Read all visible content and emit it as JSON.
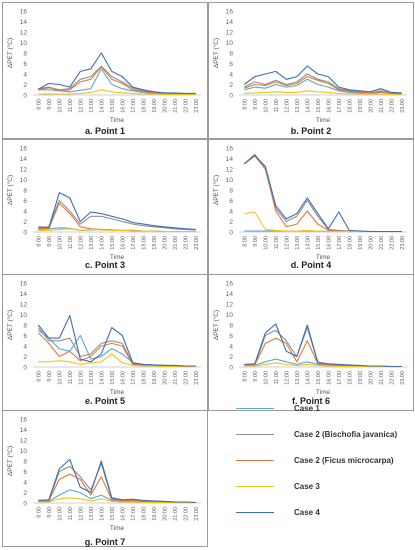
{
  "chart_data": [
    {
      "type": "line",
      "caption": "a. Point 1",
      "ylabel": "ΔPET (°C)",
      "xlabel": "Time",
      "ylim": [
        0,
        16
      ],
      "yticks": [
        0,
        2,
        4,
        6,
        8,
        10,
        12,
        14,
        16
      ],
      "x": [
        "8:00",
        "9:00",
        "10:00",
        "11:00",
        "12:00",
        "13:00",
        "14:00",
        "15:00",
        "16:00",
        "17:00",
        "18:00",
        "19:00",
        "20:00",
        "21:00",
        "22:00",
        "23:00"
      ],
      "series": [
        {
          "name": "Case 1",
          "color": "#5aa7d6",
          "values": [
            1.0,
            1.0,
            0.8,
            0.6,
            0.9,
            1.2,
            5.0,
            2.0,
            1.2,
            0.8,
            0.5,
            0.3,
            0.2,
            0.2,
            0.1,
            0.1
          ]
        },
        {
          "name": "Case 2 (Bischofia javanica)",
          "color": "#8f8f8f",
          "values": [
            1.2,
            1.5,
            1.0,
            1.2,
            3.0,
            3.5,
            5.5,
            3.5,
            2.5,
            1.3,
            0.8,
            0.5,
            0.3,
            0.3,
            0.2,
            0.2
          ]
        },
        {
          "name": "Case 2 (Ficus microcarpa)",
          "color": "#e07b39",
          "values": [
            1.0,
            1.4,
            0.9,
            1.0,
            2.5,
            3.0,
            5.4,
            3.0,
            2.2,
            1.0,
            0.6,
            0.4,
            0.3,
            0.2,
            0.2,
            0.2
          ]
        },
        {
          "name": "Case 3",
          "color": "#f2c31b",
          "values": [
            0.2,
            0.2,
            0.2,
            0.2,
            0.3,
            0.5,
            1.0,
            0.6,
            0.4,
            0.3,
            0.2,
            0.2,
            0.1,
            0.1,
            0.1,
            0.1
          ]
        },
        {
          "name": "Case 4",
          "color": "#3d6db3",
          "values": [
            1.1,
            2.2,
            2.0,
            1.5,
            4.5,
            5.0,
            8.0,
            4.5,
            3.5,
            1.5,
            1.0,
            0.6,
            0.4,
            0.4,
            0.3,
            0.3
          ]
        }
      ]
    },
    {
      "type": "line",
      "caption": "b. Point 2",
      "ylabel": "ΔPET (°C)",
      "xlabel": "Time",
      "ylim": [
        0,
        16
      ],
      "yticks": [
        0,
        2,
        4,
        6,
        8,
        10,
        12,
        14,
        16
      ],
      "x": [
        "8:00",
        "9:00",
        "10:00",
        "11:00",
        "12:00",
        "13:00",
        "14:00",
        "15:00",
        "16:00",
        "17:00",
        "18:00",
        "19:00",
        "20:00",
        "21:00",
        "22:00",
        "23:00"
      ],
      "series": [
        {
          "name": "Case 1",
          "color": "#5aa7d6",
          "values": [
            1.0,
            1.5,
            1.3,
            2.0,
            1.5,
            1.8,
            3.0,
            2.0,
            1.5,
            0.8,
            0.5,
            0.4,
            0.3,
            0.5,
            0.3,
            0.2
          ]
        },
        {
          "name": "Case 2 (Bischofia javanica)",
          "color": "#8f8f8f",
          "values": [
            1.5,
            2.5,
            2.0,
            2.8,
            2.0,
            2.5,
            4.0,
            3.0,
            2.5,
            1.2,
            0.8,
            0.6,
            0.4,
            0.8,
            0.4,
            0.3
          ]
        },
        {
          "name": "Case 2 (Ficus microcarpa)",
          "color": "#e07b39",
          "values": [
            1.3,
            2.0,
            1.8,
            2.5,
            1.8,
            2.2,
            3.5,
            2.8,
            2.2,
            1.0,
            0.7,
            0.5,
            0.4,
            0.6,
            0.3,
            0.3
          ]
        },
        {
          "name": "Case 3",
          "color": "#f2c31b",
          "values": [
            0.3,
            0.4,
            0.5,
            0.6,
            0.5,
            0.5,
            0.8,
            0.6,
            0.5,
            0.3,
            0.2,
            0.2,
            0.2,
            0.2,
            0.1,
            0.1
          ]
        },
        {
          "name": "Case 4",
          "color": "#3d6db3",
          "values": [
            2.0,
            3.5,
            4.0,
            4.5,
            3.0,
            3.5,
            5.5,
            4.0,
            3.5,
            1.5,
            1.0,
            0.8,
            0.6,
            1.2,
            0.5,
            0.4
          ]
        }
      ]
    },
    {
      "type": "line",
      "caption": "c. Point 3",
      "ylabel": "ΔPET (°C)",
      "xlabel": "Time",
      "ylim": [
        0,
        16
      ],
      "yticks": [
        0,
        2,
        4,
        6,
        8,
        10,
        12,
        14,
        16
      ],
      "x": [
        "8:00",
        "9:00",
        "10:00",
        "11:00",
        "12:00",
        "13:00",
        "14:00",
        "15:00",
        "16:00",
        "17:00",
        "18:00",
        "19:00",
        "20:00",
        "21:00",
        "22:00",
        "23:00"
      ],
      "series": [
        {
          "name": "Case 1",
          "color": "#5aa7d6",
          "values": [
            0.5,
            0.6,
            0.8,
            0.7,
            0.3,
            0.4,
            0.5,
            0.4,
            0.3,
            0.3,
            0.2,
            0.2,
            0.1,
            0.1,
            0.1,
            0.1
          ]
        },
        {
          "name": "Case 2 (Bischofia javanica)",
          "color": "#8f8f8f",
          "values": [
            0.8,
            1.0,
            6.0,
            4.0,
            1.5,
            3.0,
            3.0,
            2.5,
            2.0,
            1.5,
            1.2,
            1.0,
            0.8,
            0.6,
            0.5,
            0.4
          ]
        },
        {
          "name": "Case 2 (Ficus microcarpa)",
          "color": "#e07b39",
          "values": [
            0.7,
            0.6,
            5.5,
            3.5,
            1.0,
            0.6,
            0.5,
            0.4,
            0.3,
            0.3,
            0.2,
            0.2,
            0.1,
            0.1,
            0.1,
            0.1
          ]
        },
        {
          "name": "Case 3",
          "color": "#f2c31b",
          "values": [
            0.3,
            0.3,
            0.5,
            0.6,
            0.3,
            0.5,
            0.4,
            0.3,
            0.3,
            0.2,
            0.2,
            0.2,
            0.1,
            0.1,
            0.1,
            0.1
          ]
        },
        {
          "name": "Case 4",
          "color": "#3d6db3",
          "values": [
            1.0,
            0.8,
            7.5,
            6.5,
            2.0,
            3.8,
            3.5,
            3.0,
            2.5,
            1.8,
            1.5,
            1.2,
            1.0,
            0.8,
            0.6,
            0.5
          ]
        }
      ]
    },
    {
      "type": "line",
      "caption": "d. Point 4",
      "ylabel": "ΔPET (°C)",
      "xlabel": "Time",
      "ylim": [
        0,
        16
      ],
      "yticks": [
        0,
        2,
        4,
        6,
        8,
        10,
        12,
        14,
        16
      ],
      "x": [
        "8:00",
        "9:00",
        "10:00",
        "11:00",
        "12:00",
        "13:00",
        "14:00",
        "15:00",
        "16:00",
        "17:00",
        "18:00",
        "19:00",
        "20:00",
        "21:00",
        "22:00",
        "23:00"
      ],
      "series": [
        {
          "name": "Case 1",
          "color": "#5aa7d6",
          "values": [
            0.2,
            0.2,
            0.2,
            0.2,
            0.2,
            0.2,
            0.2,
            0.2,
            0.1,
            0.1,
            0.1,
            0.1,
            0.1,
            0.1,
            0.1,
            0.1
          ]
        },
        {
          "name": "Case 2 (Bischofia javanica)",
          "color": "#8f8f8f",
          "values": [
            13.0,
            14.5,
            12.0,
            4.5,
            2.0,
            3.0,
            6.0,
            3.0,
            0.5,
            0.3,
            0.2,
            0.2,
            0.1,
            0.1,
            0.1,
            0.1
          ]
        },
        {
          "name": "Case 2 (Ficus microcarpa)",
          "color": "#e07b39",
          "values": [
            13.0,
            14.8,
            12.0,
            4.0,
            1.0,
            1.5,
            4.0,
            1.5,
            0.3,
            0.2,
            0.2,
            0.1,
            0.1,
            0.1,
            0.1,
            0.1
          ]
        },
        {
          "name": "Case 3",
          "color": "#f2c31b",
          "values": [
            3.5,
            3.8,
            0.5,
            0.3,
            0.2,
            0.2,
            0.3,
            0.2,
            0.1,
            0.1,
            0.1,
            0.1,
            0.1,
            0.1,
            0.1,
            0.1
          ]
        },
        {
          "name": "Case 4",
          "color": "#3d6db3",
          "values": [
            13.0,
            14.6,
            12.5,
            5.0,
            2.5,
            3.5,
            6.5,
            3.5,
            0.6,
            3.8,
            0.3,
            0.2,
            0.1,
            0.1,
            0.1,
            0.1
          ]
        }
      ]
    },
    {
      "type": "line",
      "caption": "e. Point 5",
      "ylabel": "ΔPET (°C)",
      "xlabel": "Time",
      "ylim": [
        0,
        16
      ],
      "yticks": [
        0,
        2,
        4,
        6,
        8,
        10,
        12,
        14,
        16
      ],
      "x": [
        "8:00",
        "9:00",
        "10:00",
        "11:00",
        "12:00",
        "13:00",
        "14:00",
        "15:00",
        "16:00",
        "17:00",
        "18:00",
        "19:00",
        "20:00",
        "21:00",
        "22:00",
        "23:00"
      ],
      "series": [
        {
          "name": "Case 1",
          "color": "#5aa7d6",
          "values": [
            7.0,
            5.5,
            3.5,
            3.0,
            6.0,
            1.5,
            2.0,
            3.5,
            2.5,
            0.8,
            0.5,
            0.4,
            0.3,
            0.3,
            0.2,
            0.2
          ]
        },
        {
          "name": "Case 2 (Bischofia javanica)",
          "color": "#8f8f8f",
          "values": [
            7.5,
            5.0,
            5.0,
            5.5,
            2.0,
            2.5,
            4.5,
            5.0,
            4.5,
            0.6,
            0.4,
            0.3,
            0.3,
            0.2,
            0.2,
            0.2
          ]
        },
        {
          "name": "Case 2 (Ficus microcarpa)",
          "color": "#e07b39",
          "values": [
            6.5,
            4.5,
            2.0,
            3.0,
            1.2,
            2.0,
            4.0,
            4.5,
            4.0,
            0.5,
            0.4,
            0.3,
            0.2,
            0.2,
            0.2,
            0.2
          ]
        },
        {
          "name": "Case 3",
          "color": "#f2c31b",
          "values": [
            1.0,
            1.0,
            1.2,
            1.0,
            0.5,
            0.8,
            1.0,
            2.5,
            0.8,
            0.3,
            0.2,
            0.2,
            0.1,
            0.1,
            0.1,
            0.1
          ]
        },
        {
          "name": "Case 4",
          "color": "#3d6db3",
          "values": [
            8.0,
            5.5,
            5.5,
            9.8,
            1.5,
            1.0,
            2.5,
            7.5,
            6.0,
            0.8,
            0.5,
            0.4,
            0.3,
            0.3,
            0.2,
            0.2
          ]
        }
      ]
    },
    {
      "type": "line",
      "caption": "f. Point 6",
      "ylabel": "ΔPET (°C)",
      "xlabel": "Time",
      "ylim": [
        0,
        16
      ],
      "yticks": [
        0,
        2,
        4,
        6,
        8,
        10,
        12,
        14,
        16
      ],
      "x": [
        "8:00",
        "9:00",
        "10:00",
        "11:00",
        "12:00",
        "13:00",
        "14:00",
        "15:00",
        "16:00",
        "17:00",
        "18:00",
        "19:00",
        "20:00",
        "21:00",
        "22:00",
        "23:00"
      ],
      "series": [
        {
          "name": "Case 1",
          "color": "#5aa7d6",
          "values": [
            0.3,
            0.3,
            1.0,
            1.5,
            1.0,
            0.5,
            1.0,
            0.5,
            0.3,
            0.2,
            0.2,
            0.1,
            0.1,
            0.1,
            0.1,
            0.1
          ]
        },
        {
          "name": "Case 2 (Bischofia javanica)",
          "color": "#8f8f8f",
          "values": [
            0.5,
            0.5,
            6.0,
            7.0,
            5.0,
            2.0,
            7.5,
            0.8,
            0.5,
            0.4,
            0.3,
            0.2,
            0.2,
            0.2,
            0.1,
            0.1
          ]
        },
        {
          "name": "Case 2 (Ficus microcarpa)",
          "color": "#e07b39",
          "values": [
            0.4,
            0.4,
            4.5,
            5.5,
            4.5,
            1.0,
            5.0,
            0.6,
            0.4,
            0.3,
            0.2,
            0.2,
            0.2,
            0.1,
            0.1,
            0.1
          ]
        },
        {
          "name": "Case 3",
          "color": "#f2c31b",
          "values": [
            0.2,
            0.2,
            0.5,
            0.8,
            0.5,
            0.3,
            0.5,
            0.3,
            0.2,
            0.1,
            0.1,
            0.1,
            0.1,
            0.1,
            0.1,
            0.1
          ]
        },
        {
          "name": "Case 4",
          "color": "#3d6db3",
          "values": [
            0.5,
            0.6,
            6.5,
            8.2,
            3.0,
            2.0,
            8.0,
            0.9,
            0.6,
            0.5,
            0.4,
            0.3,
            0.2,
            0.2,
            0.1,
            0.1
          ]
        }
      ]
    },
    {
      "type": "line",
      "caption": "g. Point 7",
      "ylabel": "ΔPET (°C)",
      "xlabel": "Time",
      "ylim": [
        0,
        16
      ],
      "yticks": [
        0,
        2,
        4,
        6,
        8,
        10,
        12,
        14,
        16
      ],
      "x": [
        "8:00",
        "9:00",
        "10:00",
        "11:00",
        "12:00",
        "13:00",
        "14:00",
        "15:00",
        "16:00",
        "17:00",
        "18:00",
        "19:00",
        "20:00",
        "21:00",
        "22:00",
        "23:00"
      ],
      "series": [
        {
          "name": "Case 1",
          "color": "#5aa7d6",
          "values": [
            0.3,
            0.3,
            1.5,
            2.5,
            2.0,
            0.8,
            1.5,
            0.5,
            0.3,
            0.3,
            0.2,
            0.2,
            0.2,
            0.1,
            0.1,
            0.1
          ]
        },
        {
          "name": "Case 2 (Bischofia javanica)",
          "color": "#8f8f8f",
          "values": [
            0.5,
            0.5,
            6.0,
            7.0,
            5.0,
            2.5,
            7.5,
            0.8,
            0.5,
            0.6,
            0.4,
            0.3,
            0.3,
            0.2,
            0.2,
            0.1
          ]
        },
        {
          "name": "Case 2 (Ficus microcarpa)",
          "color": "#e07b39",
          "values": [
            0.4,
            0.4,
            4.5,
            5.5,
            4.5,
            1.5,
            5.0,
            0.6,
            0.4,
            0.5,
            0.3,
            0.3,
            0.2,
            0.2,
            0.1,
            0.1
          ]
        },
        {
          "name": "Case 3",
          "color": "#f2c31b",
          "values": [
            0.2,
            0.2,
            0.8,
            1.0,
            0.8,
            0.4,
            0.8,
            0.3,
            0.2,
            0.2,
            0.1,
            0.1,
            0.1,
            0.1,
            0.1,
            0.1
          ]
        },
        {
          "name": "Case 4",
          "color": "#3d6db3",
          "values": [
            0.5,
            0.6,
            6.5,
            8.3,
            3.0,
            2.0,
            8.0,
            1.0,
            0.6,
            0.7,
            0.5,
            0.4,
            0.3,
            0.2,
            0.2,
            0.1
          ]
        }
      ]
    }
  ],
  "legend": [
    {
      "label": "Case 1",
      "color": "#5aa7d6"
    },
    {
      "label": "Case 2 (Bischofia javanica)",
      "color": "#8f8f8f"
    },
    {
      "label": "Case 2 (Ficus microcarpa)",
      "color": "#e07b39"
    },
    {
      "label": "Case 3",
      "color": "#f2c31b"
    },
    {
      "label": "Case 4",
      "color": "#3d6db3"
    }
  ]
}
